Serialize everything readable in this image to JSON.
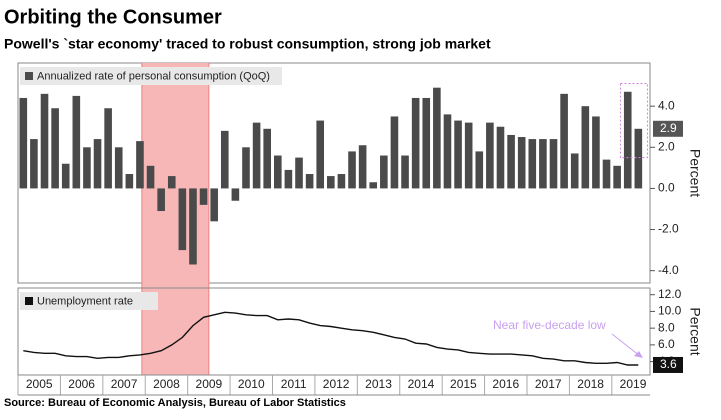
{
  "title": "Orbiting the Consumer",
  "subtitle": "Powell's `star economy' traced to robust consumption, strong job market",
  "source": "Source: Bureau of Economic Analysis, Bureau of Labor Statistics",
  "chart_data": [
    {
      "type": "bar",
      "legend": "Annualized rate of personal consumption (QoQ)",
      "y_label": "Percent",
      "color": "#4a4a4a",
      "shaded_range": [
        2007.92,
        2009.5
      ],
      "shaded_color": "#f7b7b7",
      "xlim": [
        2005,
        2019.9
      ],
      "ylim": [
        -4.6,
        6.1
      ],
      "yticks": [
        {
          "value": -4,
          "label": "-4.0"
        },
        {
          "value": -2,
          "label": "-2.0"
        },
        {
          "value": 0,
          "label": "0.0"
        },
        {
          "value": 2,
          "label": "2.0"
        },
        {
          "value": 4,
          "label": "4.0"
        }
      ],
      "values": [
        4.4,
        2.4,
        4.6,
        3.9,
        1.2,
        4.5,
        2.0,
        2.4,
        3.9,
        2.0,
        0.7,
        2.3,
        1.1,
        -1.1,
        0.6,
        -3.0,
        -3.7,
        -0.8,
        -1.6,
        2.8,
        -0.6,
        2.0,
        3.2,
        2.9,
        1.6,
        0.9,
        1.5,
        0.7,
        3.3,
        0.6,
        0.7,
        1.8,
        2.1,
        0.3,
        1.6,
        3.5,
        1.6,
        4.4,
        4.4,
        4.9,
        3.6,
        3.3,
        3.2,
        1.8,
        3.2,
        3.0,
        2.6,
        2.5,
        2.4,
        2.4,
        2.4,
        4.6,
        1.7,
        4.0,
        3.5,
        1.4,
        1.1,
        4.7,
        2.9
      ]
    },
    {
      "type": "line",
      "legend": "Unemployment rate",
      "y_label": "Percent",
      "color": "#111111",
      "annotation": "Near five-decade low",
      "annotation_color": "#c9a0ef",
      "xlim": [
        2005,
        2019.9
      ],
      "xticks": [
        2005,
        2006,
        2007,
        2008,
        2009,
        2010,
        2011,
        2012,
        2013,
        2014,
        2015,
        2016,
        2017,
        2018,
        2019
      ],
      "ylim": [
        2.4,
        12.8
      ],
      "yticks": [
        {
          "value": 4,
          "label": "4.0"
        },
        {
          "value": 6,
          "label": "6.0"
        },
        {
          "value": 8,
          "label": "8.0"
        },
        {
          "value": 10,
          "label": "10.0"
        },
        {
          "value": 12,
          "label": "12.0"
        }
      ],
      "values": [
        5.3,
        5.1,
        5.0,
        5.0,
        4.7,
        4.6,
        4.6,
        4.4,
        4.5,
        4.5,
        4.7,
        4.8,
        5.0,
        5.3,
        6.0,
        6.9,
        8.3,
        9.3,
        9.6,
        9.9,
        9.8,
        9.6,
        9.5,
        9.5,
        9.0,
        9.1,
        9.0,
        8.6,
        8.3,
        8.2,
        8.0,
        7.8,
        7.7,
        7.5,
        7.2,
        6.9,
        6.7,
        6.2,
        6.1,
        5.7,
        5.5,
        5.4,
        5.1,
        5.0,
        4.9,
        4.9,
        4.9,
        4.8,
        4.7,
        4.4,
        4.3,
        4.1,
        4.1,
        3.9,
        3.8,
        3.8,
        3.9,
        3.6,
        3.6
      ]
    }
  ]
}
